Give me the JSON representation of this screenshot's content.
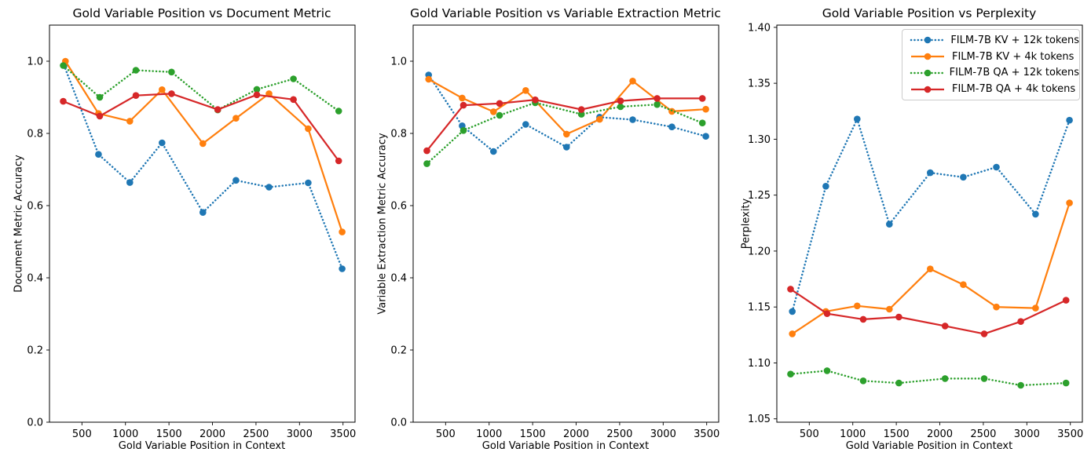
{
  "chart_data": [
    {
      "type": "line",
      "title": "Gold Variable Position vs Document Metric",
      "xlabel": "Gold Variable Position in Context",
      "ylabel": "Document Metric Accuracy",
      "xlim": [
        127,
        3638
      ],
      "ylim": [
        0,
        1.1
      ],
      "xticks": [
        500,
        1000,
        1500,
        2000,
        2500,
        3000,
        3500
      ],
      "xtick_labels": [
        "500",
        "1000",
        "1500",
        "2000",
        "2500",
        "3000",
        "3500"
      ],
      "yticks": [
        0.0,
        0.2,
        0.4,
        0.6,
        0.8,
        1.0
      ],
      "ytick_labels": [
        "0.0",
        "0.2",
        "0.4",
        "0.6",
        "0.8",
        "1.0"
      ],
      "grid": false,
      "series": [
        {
          "name": "FILM-7B KV + 12k tokens",
          "color": "#1f77b4",
          "line": "dotted",
          "marker": "circle",
          "x": [
            295,
            690,
            1050,
            1420,
            1890,
            2270,
            2650,
            3100,
            3490
          ],
          "y": [
            0.988,
            0.742,
            0.664,
            0.774,
            0.581,
            0.67,
            0.651,
            0.663,
            0.425
          ]
        },
        {
          "name": "FILM-7B KV + 4k tokens",
          "color": "#ff7f0e",
          "line": "solid",
          "marker": "circle",
          "x": [
            310,
            690,
            1050,
            1420,
            1890,
            2270,
            2650,
            3100,
            3490
          ],
          "y": [
            1.0,
            0.855,
            0.834,
            0.921,
            0.772,
            0.842,
            0.91,
            0.813,
            0.527
          ]
        },
        {
          "name": "FILM-7B QA + 12k tokens",
          "color": "#2ca02c",
          "line": "dotted",
          "marker": "circle",
          "x": [
            285,
            705,
            1120,
            1530,
            2060,
            2510,
            2930,
            3450
          ],
          "y": [
            0.988,
            0.9,
            0.975,
            0.97,
            0.865,
            0.922,
            0.951,
            0.862
          ]
        },
        {
          "name": "FILM-7B QA + 4k tokens",
          "color": "#d62728",
          "line": "solid",
          "marker": "circle",
          "x": [
            285,
            705,
            1120,
            1530,
            2060,
            2510,
            2930,
            3450
          ],
          "y": [
            0.889,
            0.848,
            0.905,
            0.91,
            0.866,
            0.907,
            0.894,
            0.724
          ]
        }
      ]
    },
    {
      "type": "line",
      "title": "Gold Variable Position vs Variable Extraction Metric",
      "xlabel": "Gold Variable Position in Context",
      "ylabel": "Variable Extraction Metric Accuracy",
      "xlim": [
        127,
        3638
      ],
      "ylim": [
        0,
        1.1
      ],
      "xticks": [
        500,
        1000,
        1500,
        2000,
        2500,
        3000,
        3500
      ],
      "xtick_labels": [
        "500",
        "1000",
        "1500",
        "2000",
        "2500",
        "3000",
        "3500"
      ],
      "yticks": [
        0.0,
        0.2,
        0.4,
        0.6,
        0.8,
        1.0
      ],
      "ytick_labels": [
        "0.0",
        "0.2",
        "0.4",
        "0.6",
        "0.8",
        "1.0"
      ],
      "grid": false,
      "series": [
        {
          "name": "FILM-7B KV + 12k tokens",
          "color": "#1f77b4",
          "line": "dotted",
          "marker": "circle",
          "x": [
            305,
            690,
            1050,
            1420,
            1890,
            2270,
            2650,
            3100,
            3490
          ],
          "y": [
            0.962,
            0.821,
            0.75,
            0.825,
            0.762,
            0.845,
            0.838,
            0.818,
            0.792
          ]
        },
        {
          "name": "FILM-7B KV + 4k tokens",
          "color": "#ff7f0e",
          "line": "solid",
          "marker": "circle",
          "x": [
            305,
            690,
            1050,
            1420,
            1890,
            2270,
            2650,
            3100,
            3490
          ],
          "y": [
            0.95,
            0.898,
            0.86,
            0.919,
            0.798,
            0.839,
            0.945,
            0.861,
            0.867
          ]
        },
        {
          "name": "FILM-7B QA + 12k tokens",
          "color": "#2ca02c",
          "line": "dotted",
          "marker": "circle",
          "x": [
            285,
            705,
            1120,
            1530,
            2060,
            2510,
            2930,
            3450
          ],
          "y": [
            0.716,
            0.808,
            0.85,
            0.885,
            0.853,
            0.874,
            0.88,
            0.829
          ]
        },
        {
          "name": "FILM-7B QA + 4k tokens",
          "color": "#d62728",
          "line": "solid",
          "marker": "circle",
          "x": [
            285,
            705,
            1120,
            1530,
            2060,
            2510,
            2930,
            3450
          ],
          "y": [
            0.752,
            0.878,
            0.883,
            0.893,
            0.866,
            0.89,
            0.897,
            0.897
          ]
        }
      ]
    },
    {
      "type": "line",
      "title": "Gold Variable Position vs Perplexity",
      "xlabel": "Gold Variable Position in Context",
      "ylabel": "Perplexity",
      "xlim": [
        127,
        3638
      ],
      "ylim": [
        1.047,
        1.402
      ],
      "xticks": [
        500,
        1000,
        1500,
        2000,
        2500,
        3000,
        3500
      ],
      "xtick_labels": [
        "500",
        "1000",
        "1500",
        "2000",
        "2500",
        "3000",
        "3500"
      ],
      "yticks": [
        1.05,
        1.1,
        1.15,
        1.2,
        1.25,
        1.3,
        1.35,
        1.4
      ],
      "ytick_labels": [
        "1.05",
        "1.10",
        "1.15",
        "1.20",
        "1.25",
        "1.30",
        "1.35",
        "1.40"
      ],
      "grid": false,
      "legend_location": "upper right",
      "series": [
        {
          "name": "FILM-7B KV + 12k tokens",
          "color": "#1f77b4",
          "line": "dotted",
          "marker": "circle",
          "x": [
            305,
            690,
            1050,
            1420,
            1890,
            2270,
            2650,
            3100,
            3490
          ],
          "y": [
            1.146,
            1.258,
            1.318,
            1.224,
            1.27,
            1.266,
            1.275,
            1.233,
            1.317
          ]
        },
        {
          "name": "FILM-7B KV + 4k tokens",
          "color": "#ff7f0e",
          "line": "solid",
          "marker": "circle",
          "x": [
            305,
            690,
            1050,
            1420,
            1890,
            2270,
            2650,
            3100,
            3490
          ],
          "y": [
            1.126,
            1.146,
            1.151,
            1.148,
            1.184,
            1.17,
            1.15,
            1.149,
            1.243
          ]
        },
        {
          "name": "FILM-7B QA + 12k tokens",
          "color": "#2ca02c",
          "line": "dotted",
          "marker": "circle",
          "x": [
            285,
            705,
            1120,
            1530,
            2060,
            2510,
            2930,
            3450
          ],
          "y": [
            1.09,
            1.093,
            1.084,
            1.082,
            1.086,
            1.086,
            1.08,
            1.082
          ]
        },
        {
          "name": "FILM-7B QA + 4k tokens",
          "color": "#d62728",
          "line": "solid",
          "marker": "circle",
          "x": [
            285,
            705,
            1120,
            1530,
            2060,
            2510,
            2930,
            3450
          ],
          "y": [
            1.166,
            1.144,
            1.139,
            1.141,
            1.133,
            1.126,
            1.137,
            1.156
          ]
        }
      ]
    }
  ]
}
